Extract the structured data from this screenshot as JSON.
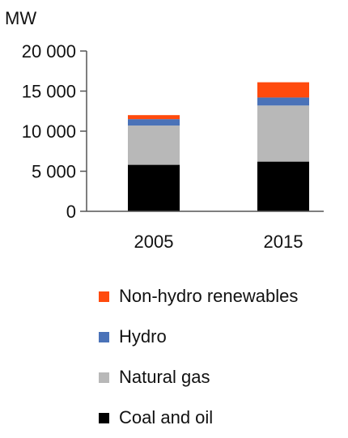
{
  "chart_data": {
    "type": "bar",
    "stacked": true,
    "unit": "MW",
    "categories": [
      "2005",
      "2015"
    ],
    "series": [
      {
        "name": "Coal and oil",
        "color": "#000000",
        "values": [
          5800,
          6200
        ]
      },
      {
        "name": "Natural gas",
        "color": "#b8b8b8",
        "values": [
          4900,
          7000
        ]
      },
      {
        "name": "Hydro",
        "color": "#4a72b8",
        "values": [
          800,
          1000
        ]
      },
      {
        "name": "Non-hydro renewables",
        "color": "#ff4a0d",
        "values": [
          500,
          1900
        ]
      }
    ],
    "y_ticks": [
      "0",
      "5 000",
      "10 000",
      "15 000",
      "20 000"
    ],
    "ylim": [
      0,
      20000
    ],
    "grid": false,
    "legend": {
      "position": "bottom",
      "order": [
        "Non-hydro renewables",
        "Hydro",
        "Natural gas",
        "Coal and oil"
      ]
    }
  }
}
